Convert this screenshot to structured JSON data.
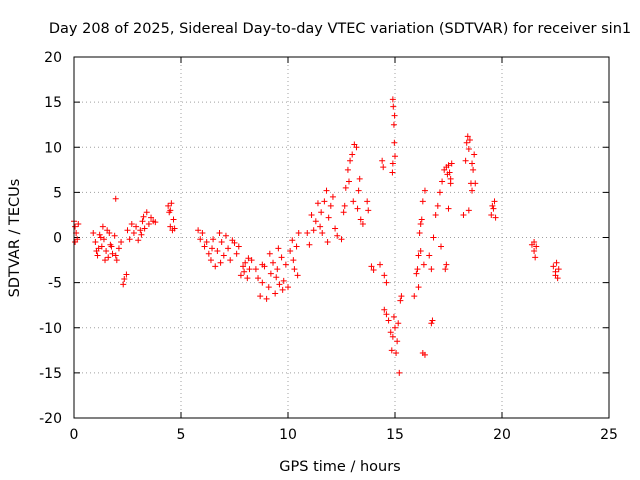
{
  "chart_data": {
    "type": "scatter",
    "title": "Day 208 of 2025, Sidereal Day-to-day VTEC variation (SDTVAR) for receiver sin1",
    "xlabel": "GPS time / hours",
    "ylabel": "SDTVAR / TECUs",
    "xlim": [
      0,
      25
    ],
    "ylim": [
      -20,
      20
    ],
    "x_ticks": [
      0,
      5,
      10,
      15,
      20,
      25
    ],
    "y_ticks": [
      -20,
      -15,
      -10,
      -5,
      0,
      5,
      10,
      15,
      20
    ],
    "grid": true,
    "marker": "+",
    "series_color": "#ff0000",
    "series": [
      {
        "name": "SDTVAR",
        "points": [
          [
            0.0,
            1.8
          ],
          [
            0.05,
            1.2
          ],
          [
            0.1,
            0.5
          ],
          [
            0.15,
            -0.2
          ],
          [
            0.2,
            1.5
          ],
          [
            0.05,
            -0.5
          ],
          [
            0.9,
            0.5
          ],
          [
            1.0,
            -0.5
          ],
          [
            1.05,
            -1.5
          ],
          [
            1.1,
            -2.0
          ],
          [
            1.2,
            0.3
          ],
          [
            1.3,
            -1.0
          ],
          [
            1.35,
            1.2
          ],
          [
            1.4,
            -0.2
          ],
          [
            1.5,
            -1.5
          ],
          [
            1.55,
            0.8
          ],
          [
            1.6,
            -2.2
          ],
          [
            1.7,
            -0.8
          ],
          [
            1.8,
            -1.8
          ],
          [
            1.9,
            0.2
          ],
          [
            2.0,
            -2.5
          ],
          [
            2.1,
            -1.2
          ],
          [
            1.25,
            0.0
          ],
          [
            1.45,
            -2.5
          ],
          [
            1.65,
            0.5
          ],
          [
            1.75,
            -1.0
          ],
          [
            1.95,
            -2.0
          ],
          [
            1.15,
            -1.2
          ],
          [
            1.95,
            4.3
          ],
          [
            2.2,
            -0.5
          ],
          [
            2.3,
            -5.2
          ],
          [
            2.35,
            -4.6
          ],
          [
            2.45,
            -4.1
          ],
          [
            2.5,
            0.8
          ],
          [
            2.6,
            -0.2
          ],
          [
            2.7,
            1.5
          ],
          [
            2.8,
            0.5
          ],
          [
            2.9,
            1.2
          ],
          [
            3.0,
            -0.3
          ],
          [
            3.1,
            0.8
          ],
          [
            3.2,
            1.8
          ],
          [
            3.3,
            1.0
          ],
          [
            3.4,
            2.8
          ],
          [
            3.5,
            1.5
          ],
          [
            3.6,
            2.2
          ],
          [
            3.7,
            1.8
          ],
          [
            3.8,
            1.7
          ],
          [
            3.15,
            0.3
          ],
          [
            3.25,
            2.3
          ],
          [
            4.4,
            3.5
          ],
          [
            4.45,
            2.8
          ],
          [
            4.5,
            1.2
          ],
          [
            4.55,
            3.8
          ],
          [
            4.6,
            0.8
          ],
          [
            4.65,
            2.0
          ],
          [
            4.7,
            1.0
          ],
          [
            4.5,
            3.0
          ],
          [
            5.8,
            0.8
          ],
          [
            5.9,
            -0.2
          ],
          [
            6.0,
            0.5
          ],
          [
            6.1,
            -1.0
          ],
          [
            6.2,
            -0.5
          ],
          [
            6.3,
            -1.8
          ],
          [
            6.4,
            -2.5
          ],
          [
            6.5,
            -0.2
          ],
          [
            6.6,
            -3.2
          ],
          [
            6.7,
            -1.5
          ],
          [
            6.8,
            0.5
          ],
          [
            6.9,
            -0.5
          ],
          [
            7.0,
            -2.0
          ],
          [
            7.1,
            0.2
          ],
          [
            7.2,
            -1.2
          ],
          [
            7.3,
            -2.5
          ],
          [
            7.4,
            -0.3
          ],
          [
            7.5,
            -0.6
          ],
          [
            7.6,
            -1.8
          ],
          [
            7.7,
            -1.0
          ],
          [
            6.45,
            -1.2
          ],
          [
            6.85,
            -2.8
          ],
          [
            7.8,
            -4.2
          ],
          [
            7.9,
            -3.2
          ],
          [
            8.0,
            -2.8
          ],
          [
            8.1,
            -4.5
          ],
          [
            8.2,
            -3.5
          ],
          [
            8.3,
            -2.5
          ],
          [
            7.95,
            -3.8
          ],
          [
            8.15,
            -2.3
          ],
          [
            8.5,
            -3.5
          ],
          [
            8.6,
            -4.5
          ],
          [
            8.7,
            -6.5
          ],
          [
            8.8,
            -5.0
          ],
          [
            8.9,
            -3.2
          ],
          [
            9.0,
            -6.8
          ],
          [
            9.1,
            -5.5
          ],
          [
            9.2,
            -4.0
          ],
          [
            9.3,
            -2.8
          ],
          [
            9.4,
            -6.2
          ],
          [
            9.5,
            -3.5
          ],
          [
            9.6,
            -5.2
          ],
          [
            9.7,
            -2.2
          ],
          [
            9.8,
            -4.8
          ],
          [
            9.9,
            -3.0
          ],
          [
            10.0,
            -5.5
          ],
          [
            10.1,
            -1.5
          ],
          [
            10.2,
            -0.3
          ],
          [
            10.3,
            -3.5
          ],
          [
            10.4,
            -1.0
          ],
          [
            10.5,
            0.5
          ],
          [
            9.15,
            -1.8
          ],
          [
            9.45,
            -4.4
          ],
          [
            9.75,
            -5.8
          ],
          [
            10.25,
            -2.5
          ],
          [
            9.55,
            -1.2
          ],
          [
            8.8,
            -3.0
          ],
          [
            10.45,
            -4.2
          ],
          [
            10.9,
            0.5
          ],
          [
            11.0,
            -0.8
          ],
          [
            11.1,
            2.5
          ],
          [
            11.2,
            0.8
          ],
          [
            11.3,
            1.8
          ],
          [
            11.4,
            3.8
          ],
          [
            11.5,
            1.2
          ],
          [
            11.6,
            0.5
          ],
          [
            11.7,
            4.0
          ],
          [
            11.8,
            5.2
          ],
          [
            11.9,
            2.2
          ],
          [
            12.0,
            3.5
          ],
          [
            12.1,
            4.5
          ],
          [
            12.2,
            1.0
          ],
          [
            12.3,
            0.2
          ],
          [
            11.55,
            2.8
          ],
          [
            11.85,
            -0.5
          ],
          [
            12.5,
            -0.2
          ],
          [
            12.6,
            2.8
          ],
          [
            12.7,
            5.5
          ],
          [
            12.8,
            7.5
          ],
          [
            12.9,
            8.5
          ],
          [
            13.0,
            9.2
          ],
          [
            13.1,
            10.3
          ],
          [
            13.2,
            10.0
          ],
          [
            13.3,
            5.2
          ],
          [
            13.4,
            2.0
          ],
          [
            13.5,
            1.5
          ],
          [
            12.65,
            3.5
          ],
          [
            12.85,
            6.2
          ],
          [
            13.05,
            4.0
          ],
          [
            13.25,
            3.2
          ],
          [
            13.35,
            6.5
          ],
          [
            13.7,
            4.0
          ],
          [
            13.75,
            3.0
          ],
          [
            13.9,
            -3.2
          ],
          [
            14.0,
            -3.6
          ],
          [
            14.4,
            8.5
          ],
          [
            14.45,
            7.8
          ],
          [
            14.3,
            -3.0
          ],
          [
            14.5,
            -4.2
          ],
          [
            14.6,
            -5.0
          ],
          [
            14.5,
            -8.0
          ],
          [
            14.6,
            -8.5
          ],
          [
            14.7,
            -9.2
          ],
          [
            14.8,
            -10.5
          ],
          [
            14.85,
            -12.5
          ],
          [
            14.9,
            -11.0
          ],
          [
            14.95,
            -8.8
          ],
          [
            15.0,
            -10.0
          ],
          [
            15.1,
            -11.5
          ],
          [
            15.2,
            -15.0
          ],
          [
            15.25,
            -7.0
          ],
          [
            15.3,
            -6.5
          ],
          [
            15.05,
            -12.8
          ],
          [
            15.15,
            -9.5
          ],
          [
            14.9,
            15.3
          ],
          [
            14.92,
            14.5
          ],
          [
            14.95,
            12.5
          ],
          [
            14.97,
            10.5
          ],
          [
            15.0,
            9.0
          ],
          [
            14.88,
            7.2
          ],
          [
            14.98,
            13.5
          ],
          [
            14.9,
            8.2
          ],
          [
            15.9,
            -6.5
          ],
          [
            16.0,
            -4.0
          ],
          [
            16.1,
            -2.0
          ],
          [
            16.15,
            0.5
          ],
          [
            16.2,
            -1.5
          ],
          [
            16.25,
            2.0
          ],
          [
            16.3,
            4.0
          ],
          [
            16.35,
            -3.0
          ],
          [
            16.4,
            5.2
          ],
          [
            16.3,
            -12.8
          ],
          [
            16.4,
            -13.0
          ],
          [
            16.1,
            -5.5
          ],
          [
            16.2,
            1.5
          ],
          [
            16.05,
            -3.5
          ],
          [
            16.7,
            -9.5
          ],
          [
            16.75,
            -9.2
          ],
          [
            16.6,
            -2.0
          ],
          [
            16.7,
            -3.5
          ],
          [
            16.8,
            0.0
          ],
          [
            16.9,
            2.5
          ],
          [
            17.0,
            3.5
          ],
          [
            17.1,
            5.0
          ],
          [
            17.2,
            6.2
          ],
          [
            17.3,
            7.5
          ],
          [
            17.4,
            -3.0
          ],
          [
            17.45,
            7.0
          ],
          [
            17.15,
            -1.0
          ],
          [
            17.35,
            -3.5
          ],
          [
            17.4,
            7.8
          ],
          [
            17.5,
            8.0
          ],
          [
            17.55,
            7.2
          ],
          [
            17.6,
            6.0
          ],
          [
            17.65,
            8.2
          ],
          [
            17.5,
            3.2
          ],
          [
            17.6,
            6.5
          ],
          [
            18.2,
            2.5
          ],
          [
            18.3,
            8.5
          ],
          [
            18.35,
            10.5
          ],
          [
            18.4,
            11.2
          ],
          [
            18.45,
            9.8
          ],
          [
            18.5,
            10.8
          ],
          [
            18.55,
            6.0
          ],
          [
            18.6,
            5.2
          ],
          [
            18.65,
            7.5
          ],
          [
            18.7,
            9.2
          ],
          [
            18.75,
            6.0
          ],
          [
            18.45,
            3.0
          ],
          [
            18.6,
            8.2
          ],
          [
            19.5,
            2.5
          ],
          [
            19.6,
            3.2
          ],
          [
            19.65,
            4.0
          ],
          [
            19.7,
            2.2
          ],
          [
            19.55,
            3.5
          ],
          [
            21.4,
            -0.8
          ],
          [
            21.5,
            -1.5
          ],
          [
            21.55,
            -2.2
          ],
          [
            21.6,
            -1.0
          ],
          [
            21.5,
            -0.5
          ],
          [
            22.4,
            -3.2
          ],
          [
            22.5,
            -3.8
          ],
          [
            22.55,
            -2.8
          ],
          [
            22.6,
            -4.5
          ],
          [
            22.65,
            -3.5
          ],
          [
            22.5,
            -4.2
          ]
        ]
      }
    ]
  }
}
